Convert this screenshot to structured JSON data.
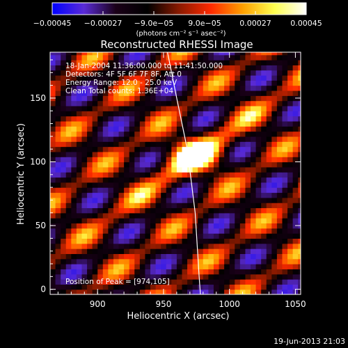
{
  "chart_data": {
    "type": "heatmap",
    "title": "Reconstructed RHESSI Image",
    "xlabel": "Heliocentric X (arcsec)",
    "ylabel": "Heliocentric Y (arcsec)",
    "xlim": [
      864,
      1054
    ],
    "ylim": [
      -4,
      186
    ],
    "x_ticks": [
      900,
      950,
      1000,
      1050
    ],
    "y_ticks": [
      0,
      50,
      100,
      150
    ],
    "colorbar": {
      "range": [
        -0.00045,
        0.00045
      ],
      "tick_values": [
        -0.00045,
        -0.00027,
        -9e-05,
        9e-05,
        0.00027,
        0.00045
      ],
      "tick_labels": [
        "−0.00045",
        "−0.00027",
        "−9.0e−05",
        "9.0e−05",
        "0.00027",
        "0.00045"
      ],
      "units": "(photons cm⁻² s⁻¹ asec⁻²)",
      "palette": [
        "#0000ff",
        "#5a2bd6",
        "#1a0018",
        "#000000",
        "#8a1a00",
        "#ff2a00",
        "#ffa000",
        "#ffff50",
        "#ffffff"
      ]
    },
    "annotations": [
      "18-Jan-2004 11:36:00.000 to 11:41:50.000",
      "Detectors: 4F 5F 6F 7F 8F, Att 0",
      "Energy Range: 12.0 - 25.0 keV",
      "Clean    Total counts: 1.36E+04"
    ],
    "peak_label": "Position of Peak = [974,105]",
    "peak": {
      "x": 974,
      "y": 105
    },
    "limb_curve": [
      [
        953,
        186
      ],
      [
        960,
        150
      ],
      [
        968,
        110
      ],
      [
        974,
        60
      ],
      [
        977,
        10
      ],
      [
        978,
        -4
      ]
    ],
    "timestamp": "19-Jun-2013 21:03"
  }
}
